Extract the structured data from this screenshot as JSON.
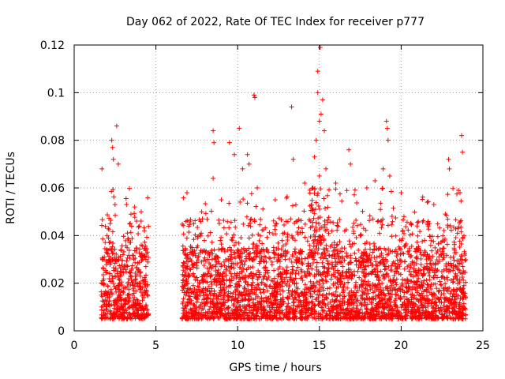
{
  "chart_data": {
    "type": "scatter",
    "title": "Day 062 of 2022, Rate Of TEC Index for receiver p777",
    "xlabel": "GPS time / hours",
    "ylabel": "ROTI / TECUs",
    "xlim": [
      0,
      25
    ],
    "ylim": [
      0,
      0.12
    ],
    "x_ticks": [
      0,
      5,
      10,
      15,
      20,
      25
    ],
    "y_ticks": [
      0,
      0.02,
      0.04,
      0.06,
      0.08,
      0.1,
      0.12
    ],
    "x_tick_labels": [
      "0",
      "5",
      "10",
      "15",
      "20",
      "25"
    ],
    "y_tick_labels": [
      "0",
      "0.02",
      "0.04",
      "0.06",
      "0.08",
      "0.1",
      "0.12"
    ],
    "grid": true,
    "marker": "+",
    "color": "#ff0000",
    "series": [
      {
        "name": "ROTI",
        "coverage_hours": [
          [
            1.65,
            4.55
          ],
          [
            6.6,
            23.95
          ]
        ],
        "typical_range": [
          0.005,
          0.035
        ],
        "points": [
          {
            "x": 1.7,
            "y": 0.068
          },
          {
            "x": 2.3,
            "y": 0.08
          },
          {
            "x": 2.35,
            "y": 0.077
          },
          {
            "x": 2.4,
            "y": 0.072
          },
          {
            "x": 2.6,
            "y": 0.086
          },
          {
            "x": 2.7,
            "y": 0.07
          },
          {
            "x": 2.5,
            "y": 0.053
          },
          {
            "x": 2.2,
            "y": 0.045
          },
          {
            "x": 3.2,
            "y": 0.053
          },
          {
            "x": 3.7,
            "y": 0.052
          },
          {
            "x": 4.1,
            "y": 0.05
          },
          {
            "x": 4.3,
            "y": 0.042
          },
          {
            "x": 6.9,
            "y": 0.058
          },
          {
            "x": 7.8,
            "y": 0.05
          },
          {
            "x": 8.5,
            "y": 0.084
          },
          {
            "x": 8.55,
            "y": 0.079
          },
          {
            "x": 8.5,
            "y": 0.064
          },
          {
            "x": 9.0,
            "y": 0.055
          },
          {
            "x": 9.5,
            "y": 0.079
          },
          {
            "x": 9.8,
            "y": 0.074
          },
          {
            "x": 10.1,
            "y": 0.085
          },
          {
            "x": 10.3,
            "y": 0.068
          },
          {
            "x": 10.6,
            "y": 0.074
          },
          {
            "x": 10.7,
            "y": 0.07
          },
          {
            "x": 11.0,
            "y": 0.099
          },
          {
            "x": 11.05,
            "y": 0.098
          },
          {
            "x": 11.2,
            "y": 0.06
          },
          {
            "x": 12.3,
            "y": 0.055
          },
          {
            "x": 13.3,
            "y": 0.094
          },
          {
            "x": 13.4,
            "y": 0.072
          },
          {
            "x": 14.1,
            "y": 0.062
          },
          {
            "x": 14.9,
            "y": 0.109
          },
          {
            "x": 15.05,
            "y": 0.119
          },
          {
            "x": 14.9,
            "y": 0.1
          },
          {
            "x": 15.2,
            "y": 0.097
          },
          {
            "x": 15.1,
            "y": 0.091
          },
          {
            "x": 15.0,
            "y": 0.088
          },
          {
            "x": 14.8,
            "y": 0.08
          },
          {
            "x": 15.3,
            "y": 0.084
          },
          {
            "x": 14.7,
            "y": 0.073
          },
          {
            "x": 15.4,
            "y": 0.068
          },
          {
            "x": 15.0,
            "y": 0.065
          },
          {
            "x": 14.6,
            "y": 0.06
          },
          {
            "x": 16.0,
            "y": 0.062
          },
          {
            "x": 16.8,
            "y": 0.076
          },
          {
            "x": 16.9,
            "y": 0.07
          },
          {
            "x": 17.9,
            "y": 0.06
          },
          {
            "x": 18.4,
            "y": 0.063
          },
          {
            "x": 19.1,
            "y": 0.088
          },
          {
            "x": 19.15,
            "y": 0.085
          },
          {
            "x": 19.2,
            "y": 0.08
          },
          {
            "x": 18.9,
            "y": 0.068
          },
          {
            "x": 19.3,
            "y": 0.065
          },
          {
            "x": 20.0,
            "y": 0.058
          },
          {
            "x": 21.6,
            "y": 0.054
          },
          {
            "x": 22.0,
            "y": 0.053
          },
          {
            "x": 22.9,
            "y": 0.072
          },
          {
            "x": 22.95,
            "y": 0.068
          },
          {
            "x": 23.5,
            "y": 0.059
          },
          {
            "x": 23.7,
            "y": 0.082
          },
          {
            "x": 23.75,
            "y": 0.075
          },
          {
            "x": 23.6,
            "y": 0.058
          }
        ]
      }
    ]
  }
}
